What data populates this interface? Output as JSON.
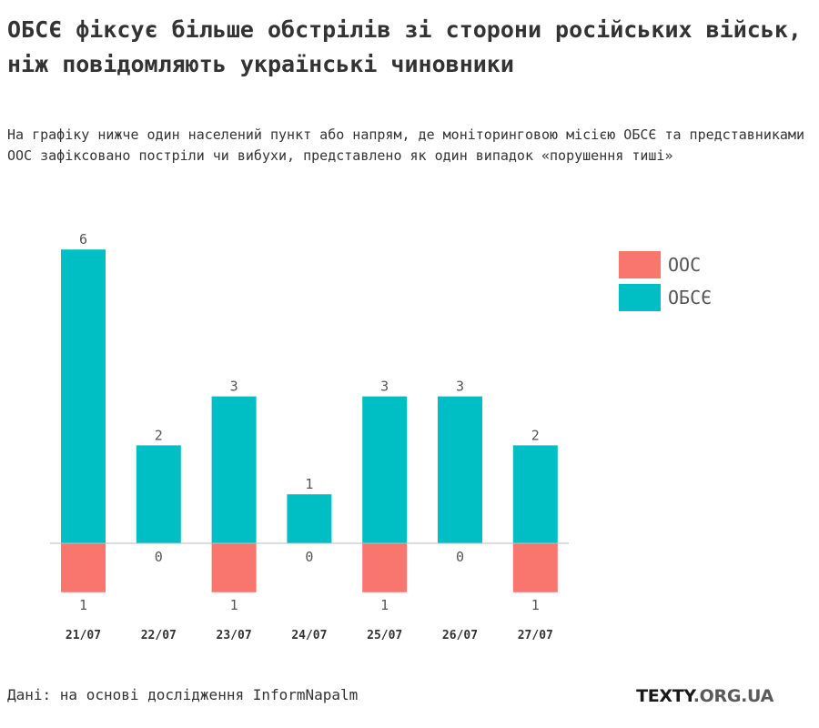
{
  "title": "ОБСЄ фіксує більше обстрілів зі сторони російських військ, ніж повідомляють українські чиновники",
  "subtitle": "На графіку нижче один населений пункт або напрям, де моніторинговою місією ОБСЄ та представниками ООС зафіксовано постріли чи вибухи, представлено як один випадок «порушення тиші»",
  "source": "Дані: на основі дослідження InformNapalm",
  "brand": {
    "part1": "TEXTY",
    "part2": ".ORG.UA"
  },
  "colors": {
    "oos": "#f8766d",
    "osce": "#00bfc4"
  },
  "chart_data": {
    "type": "bar",
    "categories": [
      "21/07",
      "22/07",
      "23/07",
      "24/07",
      "25/07",
      "26/07",
      "27/07"
    ],
    "series": [
      {
        "name": "ООС",
        "values": [
          1,
          0,
          1,
          0,
          1,
          0,
          1
        ],
        "direction": "down"
      },
      {
        "name": "ОБСЄ",
        "values": [
          6,
          2,
          3,
          1,
          3,
          3,
          2
        ],
        "direction": "up"
      }
    ],
    "ylim": [
      -1,
      6
    ],
    "legend": "right",
    "grid": false
  }
}
